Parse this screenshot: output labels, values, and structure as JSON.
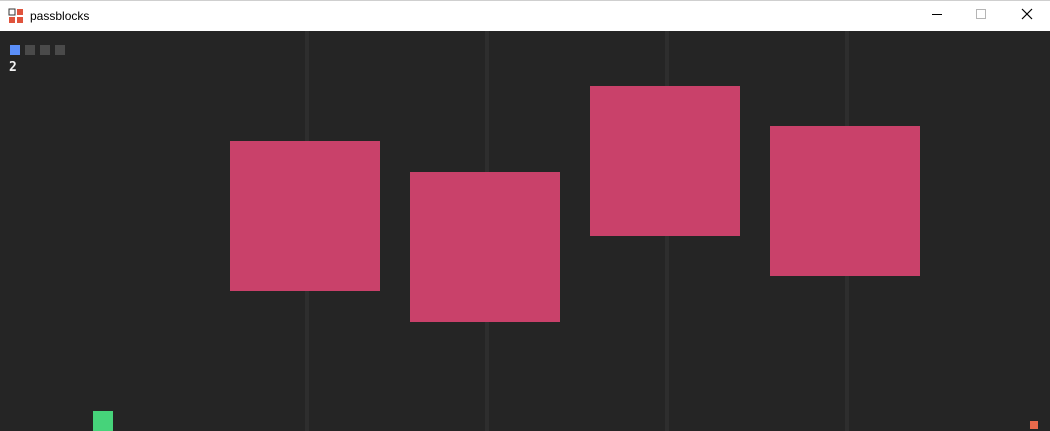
{
  "window": {
    "title": "passblocks",
    "icon": "passblocks-app-icon",
    "controls": {
      "minimize_icon": "minimize-icon",
      "maximize_icon": "maximize-icon",
      "close_icon": "close-icon"
    }
  },
  "game": {
    "background_color": "#252525",
    "lane_line_color": "#2e2e2e",
    "hud": {
      "lives": [
        {
          "state": "active",
          "color": "#5b8ff9"
        },
        {
          "state": "inactive",
          "color": "#4a4a4a"
        },
        {
          "state": "inactive",
          "color": "#4a4a4a"
        },
        {
          "state": "inactive",
          "color": "#4a4a4a"
        }
      ],
      "score": "2"
    },
    "blocks": {
      "color": "#c9416a",
      "count": 4
    },
    "player": {
      "color": "#46d37a"
    },
    "goal_marker": {
      "color": "#ea6a4c"
    }
  }
}
